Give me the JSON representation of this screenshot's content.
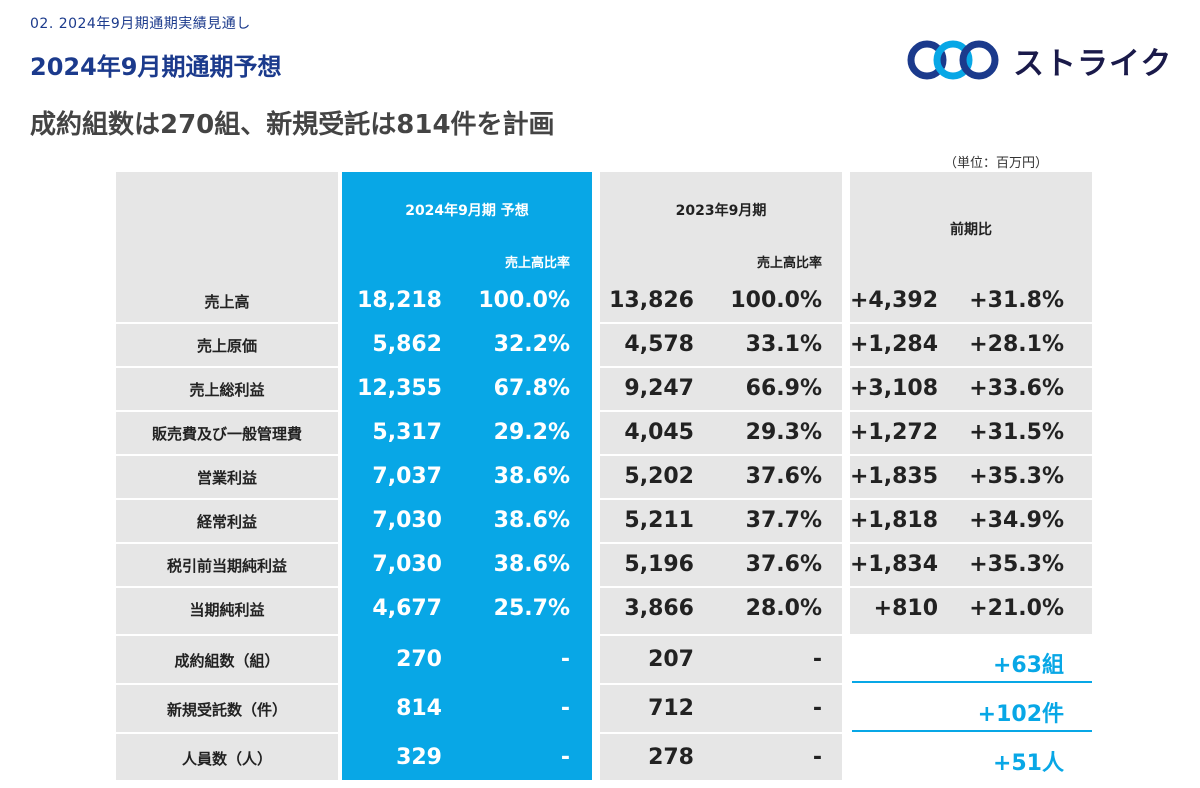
{
  "header": {
    "breadcrumb": "02. 2024年9月期通期実績見通し",
    "title": "2024年9月期通期予想",
    "subtitle": "成約組数は270組、新規受託は814件を計画",
    "logo_text": "ストライク",
    "unit_note": "（単位：百万円）"
  },
  "colors": {
    "accent": "#08a7e6",
    "navy": "#1b3a8c",
    "panel_gray": "#e6e6e6"
  },
  "table": {
    "col_forecast": "2024年9月期 予想",
    "col_forecast_ratio": "売上高比率",
    "col_prev": "2023年9月期",
    "col_prev_ratio": "売上高比率",
    "col_diff": "前期比",
    "rows": [
      {
        "label": "売上高",
        "fc": "18,218",
        "fc_ratio": "100.0%",
        "prev": "13,826",
        "prev_ratio": "100.0%",
        "diff": "+4,392",
        "diff_pct": "+31.8%"
      },
      {
        "label": "売上原価",
        "fc": "5,862",
        "fc_ratio": "32.2%",
        "prev": "4,578",
        "prev_ratio": "33.1%",
        "diff": "+1,284",
        "diff_pct": "+28.1%"
      },
      {
        "label": "売上総利益",
        "fc": "12,355",
        "fc_ratio": "67.8%",
        "prev": "9,247",
        "prev_ratio": "66.9%",
        "diff": "+3,108",
        "diff_pct": "+33.6%"
      },
      {
        "label": "販売費及び一般管理費",
        "fc": "5,317",
        "fc_ratio": "29.2%",
        "prev": "4,045",
        "prev_ratio": "29.3%",
        "diff": "+1,272",
        "diff_pct": "+31.5%"
      },
      {
        "label": "営業利益",
        "fc": "7,037",
        "fc_ratio": "38.6%",
        "prev": "5,202",
        "prev_ratio": "37.6%",
        "diff": "+1,835",
        "diff_pct": "+35.3%"
      },
      {
        "label": "経常利益",
        "fc": "7,030",
        "fc_ratio": "38.6%",
        "prev": "5,211",
        "prev_ratio": "37.7%",
        "diff": "+1,818",
        "diff_pct": "+34.9%"
      },
      {
        "label": "税引前当期純利益",
        "fc": "7,030",
        "fc_ratio": "38.6%",
        "prev": "5,196",
        "prev_ratio": "37.6%",
        "diff": "+1,834",
        "diff_pct": "+35.3%"
      },
      {
        "label": "当期純利益",
        "fc": "4,677",
        "fc_ratio": "25.7%",
        "prev": "3,866",
        "prev_ratio": "28.0%",
        "diff": "+810",
        "diff_pct": "+21.0%"
      }
    ],
    "count_rows": [
      {
        "label": "成約組数（組）",
        "fc": "270",
        "fc_ratio": "-",
        "prev": "207",
        "prev_ratio": "-",
        "diff": "+63組"
      },
      {
        "label": "新規受託数（件）",
        "fc": "814",
        "fc_ratio": "-",
        "prev": "712",
        "prev_ratio": "-",
        "diff": "+102件"
      },
      {
        "label": "人員数（人）",
        "fc": "329",
        "fc_ratio": "-",
        "prev": "278",
        "prev_ratio": "-",
        "diff": "+51人"
      }
    ]
  }
}
